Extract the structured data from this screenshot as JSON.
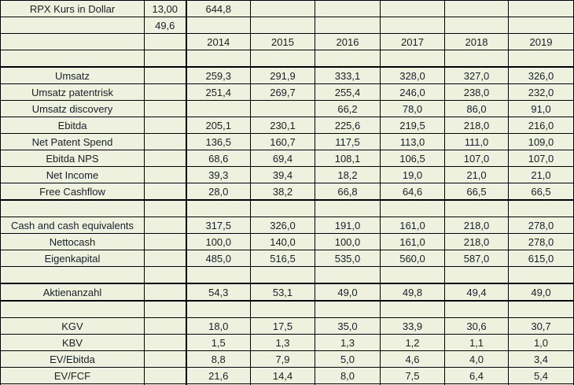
{
  "styles": {
    "cell_bg": "#edf1de",
    "grid_color": "#000000",
    "text_color": "#1a2029"
  },
  "table": {
    "title_cell": "RPX Kurs in Dollar",
    "row_count": 24,
    "col_count": 8,
    "year_headers": [
      "2014",
      "2015",
      "2016",
      "2017",
      "2018",
      "2019"
    ],
    "rows": [
      [
        "RPX Kurs in Dollar",
        "13,00",
        "644,8",
        "",
        "",
        "",
        "",
        ""
      ],
      [
        "",
        "49,6",
        "",
        "",
        "",
        "",
        "",
        ""
      ],
      [
        "",
        "",
        "2014",
        "2015",
        "2016",
        "2017",
        "2018",
        "2019"
      ],
      [
        "",
        "",
        "",
        "",
        "",
        "",
        "",
        ""
      ],
      [
        "Umsatz",
        "",
        "259,3",
        "291,9",
        "333,1",
        "328,0",
        "327,0",
        "326,0"
      ],
      [
        "Umsatz patentrisk",
        "",
        "251,4",
        "269,7",
        "255,4",
        "246,0",
        "238,0",
        "232,0"
      ],
      [
        "Umsatz discovery",
        "",
        "",
        "",
        "66,2",
        "78,0",
        "86,0",
        "91,0"
      ],
      [
        "Ebitda",
        "",
        "205,1",
        "230,1",
        "225,6",
        "219,5",
        "218,0",
        "216,0"
      ],
      [
        "Net Patent Spend",
        "",
        "136,5",
        "160,7",
        "117,5",
        "113,0",
        "111,0",
        "109,0"
      ],
      [
        "Ebitda NPS",
        "",
        "68,6",
        "69,4",
        "108,1",
        "106,5",
        "107,0",
        "107,0"
      ],
      [
        "Net Income",
        "",
        "39,3",
        "39,4",
        "18,2",
        "19,0",
        "21,0",
        "21,0"
      ],
      [
        "Free Cashflow",
        "",
        "28,0",
        "38,2",
        "66,8",
        "64,6",
        "66,5",
        "66,5"
      ],
      [
        "",
        "",
        "",
        "",
        "",
        "",
        "",
        ""
      ],
      [
        "Cash and cash equivalents",
        "",
        "317,5",
        "326,0",
        "191,0",
        "161,0",
        "218,0",
        "278,0"
      ],
      [
        "Nettocash",
        "",
        "100,0",
        "140,0",
        "100,0",
        "161,0",
        "218,0",
        "278,0"
      ],
      [
        "Eigenkapital",
        "",
        "485,0",
        "516,5",
        "535,0",
        "560,0",
        "587,0",
        "615,0"
      ],
      [
        "",
        "",
        "",
        "",
        "",
        "",
        "",
        ""
      ],
      [
        "Aktienanzahl",
        "",
        "54,3",
        "53,1",
        "49,0",
        "49,8",
        "49,4",
        "49,0"
      ],
      [
        "",
        "",
        "",
        "",
        "",
        "",
        "",
        ""
      ],
      [
        "KGV",
        "",
        "18,0",
        "17,5",
        "35,0",
        "33,9",
        "30,6",
        "30,7"
      ],
      [
        "KBV",
        "",
        "1,5",
        "1,3",
        "1,3",
        "1,2",
        "1,1",
        "1,0"
      ],
      [
        "EV/Ebitda",
        "",
        "8,8",
        "7,9",
        "5,0",
        "4,6",
        "4,0",
        "3,4"
      ],
      [
        "EV/FCF",
        "",
        "21,6",
        "14,4",
        "8,0",
        "7,5",
        "6,4",
        "5,4"
      ],
      [
        "",
        "",
        "",
        "",
        "",
        "",
        "",
        ""
      ]
    ]
  }
}
